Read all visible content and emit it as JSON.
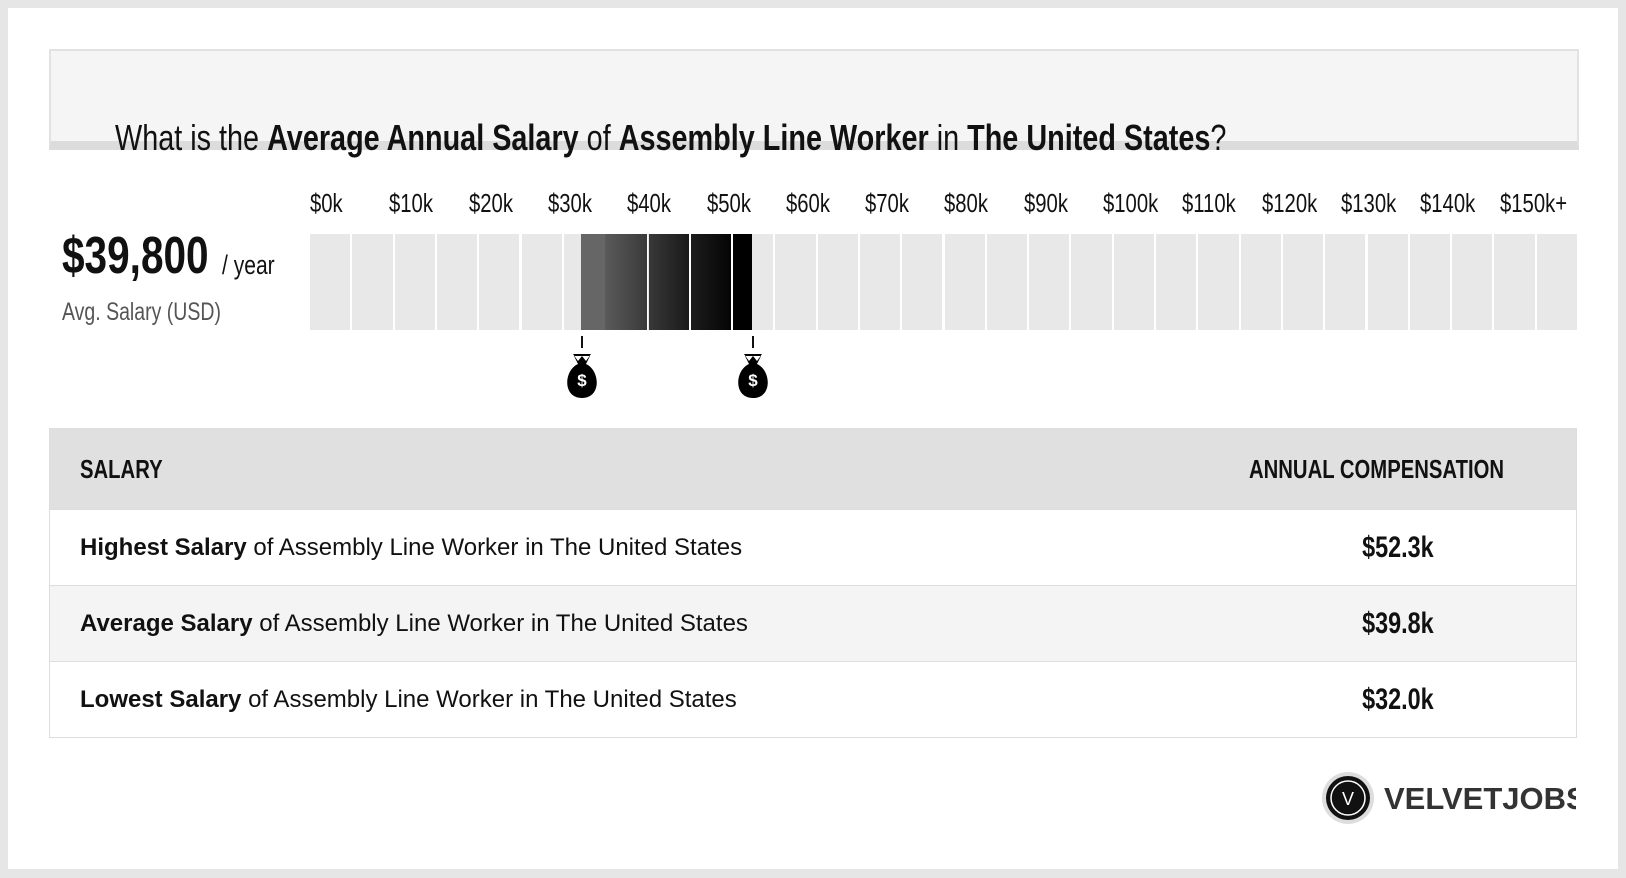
{
  "header": {
    "title_parts": [
      "What is the ",
      "Average Annual Salary",
      " of ",
      "Assembly Line Worker",
      " in ",
      "The United States",
      "?"
    ]
  },
  "summary": {
    "amount": "$39,800",
    "unit": "/ year",
    "caption": "Avg. Salary (USD)"
  },
  "scale": {
    "ticks": [
      "$0k",
      "$10k",
      "$20k",
      "$30k",
      "$40k",
      "$50k",
      "$60k",
      "$70k",
      "$80k",
      "$90k",
      "$100k",
      "$110k",
      "$120k",
      "$130k",
      "$140k",
      "$150k+"
    ]
  },
  "markers": {
    "symbol": "$"
  },
  "table": {
    "header": [
      "SALARY",
      "ANNUAL COMPENSATION"
    ],
    "rows": [
      [
        "Highest Salary",
        " of Assembly Line Worker in The United States",
        "$52.3k"
      ],
      [
        "Average Salary",
        " of Assembly Line Worker in The United States",
        "$39.8k"
      ],
      [
        "Lowest Salary",
        " of Assembly Line Worker in The United States",
        "$32.0k"
      ]
    ]
  },
  "logo": {
    "icon": "V",
    "text": "VELVETJOBS"
  }
}
